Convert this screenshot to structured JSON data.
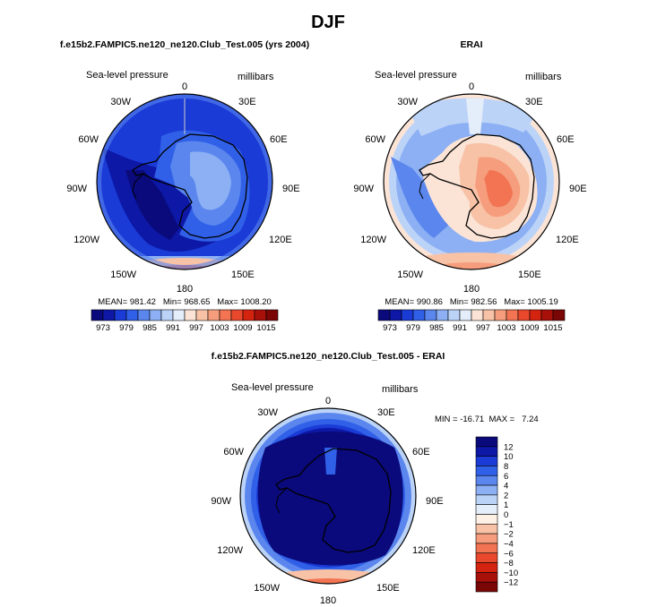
{
  "chart_data": {
    "type": "contour-map",
    "title": "DJF",
    "levels_main": [
      973,
      979,
      985,
      991,
      997,
      1003,
      1009,
      1015
    ],
    "levels_diff": [
      12,
      10,
      8,
      6,
      4,
      2,
      1,
      0,
      -1,
      -2,
      -4,
      -6,
      -8,
      -10,
      -12
    ],
    "longitude_labels": [
      "0",
      "30E",
      "60E",
      "90E",
      "120E",
      "150E",
      "180",
      "150W",
      "120W",
      "90W",
      "60W",
      "30W"
    ],
    "panels": [
      {
        "id": "model",
        "title": "f.e15b2.FAMPIC5.ne120_ne120.Club_Test.005 (yrs 2004)",
        "variable": "Sea-level pressure",
        "units": "millibars",
        "stats_text": "MEAN= 981.42   Min= 968.65   Max= 1008.20",
        "mean": 981.42,
        "min": 968.65,
        "max": 1008.2
      },
      {
        "id": "obs",
        "title": "ERAI",
        "variable": "Sea-level pressure",
        "units": "millibars",
        "stats_text": "MEAN= 990.86   Min= 982.56   Max= 1005.19",
        "mean": 990.86,
        "min": 982.56,
        "max": 1005.19
      },
      {
        "id": "diff",
        "title": "f.e15b2.FAMPIC5.ne120_ne120.Club_Test.005 - ERAI",
        "variable": "Sea-level pressure",
        "units": "millibars",
        "stats_text": "MIN = -16.71  MAX =   7.24",
        "min": -16.71,
        "max": 7.24
      }
    ]
  },
  "colors": {
    "main_scale": [
      "#0a0a7c",
      "#0d18a6",
      "#1a3bd6",
      "#3160e8",
      "#5a86ee",
      "#8cb0f3",
      "#bcd3f8",
      "#e4eefb",
      "#fbe4d6",
      "#f8c2a6",
      "#f59d7c",
      "#f27452",
      "#e9482c",
      "#d4230f",
      "#a8100a",
      "#7a0606"
    ],
    "diff_scale": [
      "#0a0a7c",
      "#0d18a6",
      "#1a3bd6",
      "#3160e8",
      "#5a86ee",
      "#8cb0f3",
      "#bcd3f8",
      "#e4eefb",
      "#fdf0e4",
      "#f8c2a6",
      "#f59d7c",
      "#f27452",
      "#e9482c",
      "#d4230f",
      "#a8100a",
      "#7a0606"
    ]
  }
}
